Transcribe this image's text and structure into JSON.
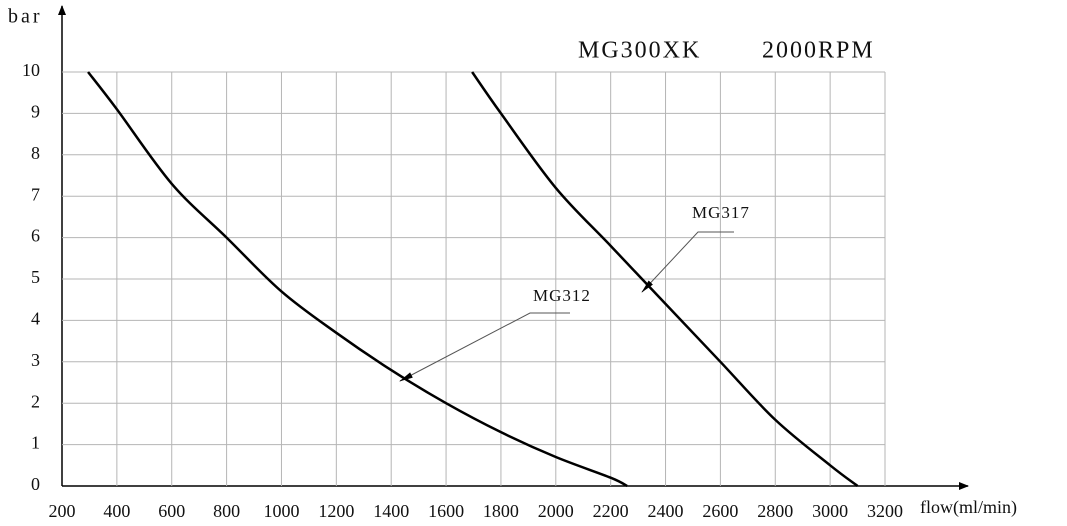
{
  "chart_data": {
    "type": "line",
    "title": "MG300XK",
    "subtitle": "2000RPM",
    "x_label": "flow(ml/min)",
    "y_label": "bar",
    "xlim": [
      200,
      3200
    ],
    "ylim": [
      0,
      10
    ],
    "xticks": [
      200,
      400,
      600,
      800,
      1000,
      1200,
      1400,
      1600,
      1800,
      2000,
      2200,
      2400,
      2600,
      2800,
      3000,
      3200
    ],
    "yticks": [
      0,
      1,
      2,
      3,
      4,
      5,
      6,
      7,
      8,
      9,
      10
    ],
    "grid": true,
    "series": [
      {
        "name": "MG312",
        "color": "#000000",
        "x": [
          295,
          400,
          600,
          800,
          1000,
          1200,
          1400,
          1600,
          1800,
          2000,
          2200,
          2260
        ],
        "values": [
          10,
          9.1,
          7.3,
          6.0,
          4.7,
          3.7,
          2.8,
          2.0,
          1.3,
          0.7,
          0.2,
          0
        ]
      },
      {
        "name": "MG317",
        "color": "#000000",
        "x": [
          1695,
          1800,
          2000,
          2200,
          2400,
          2600,
          2800,
          3000,
          3100
        ],
        "values": [
          10,
          9.0,
          7.2,
          5.8,
          4.4,
          3.0,
          1.6,
          0.5,
          0
        ]
      }
    ]
  }
}
